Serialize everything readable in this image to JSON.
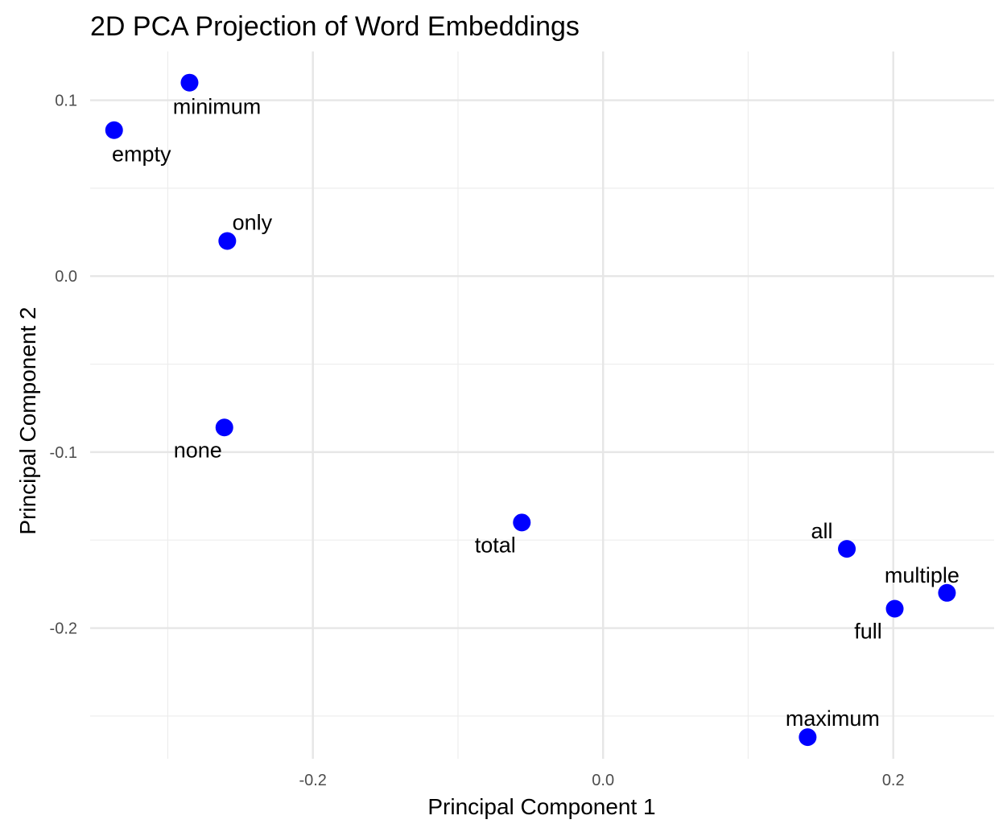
{
  "chart_data": {
    "type": "scatter",
    "title": "2D PCA Projection of Word Embeddings",
    "xlabel": "Principal Component 1",
    "ylabel": "Principal Component 2",
    "xlim": [
      -0.3535,
      0.2695
    ],
    "ylim": [
      -0.2743,
      0.1277
    ],
    "x_ticks": [
      -0.2,
      0.0,
      0.2
    ],
    "x_tick_labels": [
      "-0.2",
      "0.0",
      "0.2"
    ],
    "y_ticks": [
      0.1,
      0.0,
      -0.1,
      -0.2
    ],
    "y_tick_labels": [
      "0.1",
      "0.0",
      "-0.1",
      "-0.2"
    ],
    "x_minor_ticks": [
      -0.3,
      -0.1,
      0.1
    ],
    "y_minor_ticks": [
      0.05,
      -0.05,
      -0.15,
      -0.25
    ],
    "grid": true,
    "legend": "none",
    "point_color": "#0000ff",
    "points": [
      {
        "label": "minimum",
        "x": -0.285,
        "y": 0.11,
        "label_pos": "below-right"
      },
      {
        "label": "empty",
        "x": -0.337,
        "y": 0.083,
        "label_pos": "below-right"
      },
      {
        "label": "only",
        "x": -0.259,
        "y": 0.02,
        "label_pos": "above-right"
      },
      {
        "label": "none",
        "x": -0.261,
        "y": -0.086,
        "label_pos": "below-left"
      },
      {
        "label": "total",
        "x": -0.056,
        "y": -0.14,
        "label_pos": "below-left"
      },
      {
        "label": "all",
        "x": 0.168,
        "y": -0.155,
        "label_pos": "above-left"
      },
      {
        "label": "multiple",
        "x": 0.237,
        "y": -0.18,
        "label_pos": "above-left"
      },
      {
        "label": "full",
        "x": 0.201,
        "y": -0.189,
        "label_pos": "below-left"
      },
      {
        "label": "maximum",
        "x": 0.141,
        "y": -0.262,
        "label_pos": "above"
      }
    ]
  }
}
